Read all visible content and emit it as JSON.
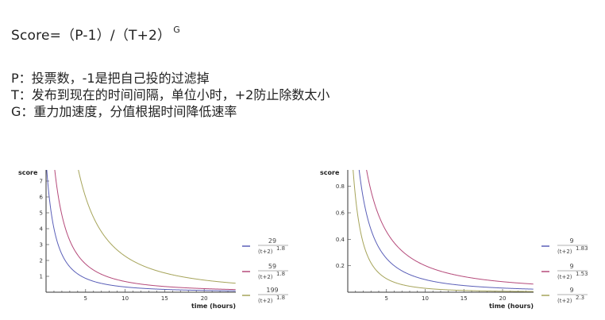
{
  "formula": {
    "main": "Score=（P-1）/（T+2）",
    "exponent": "G"
  },
  "definitions": [
    "P：投票数，-1是把自己投的过滤掉",
    "T：发布到现在的时间间隔，单位小时，+2防止除数太小",
    "G：重力加速度，分值根据时间降低速率"
  ],
  "chart_data": [
    {
      "type": "line",
      "ylabel": "score",
      "xlabel": "time (hours)",
      "xlim": [
        0,
        24
      ],
      "ylim": [
        0,
        7.5
      ],
      "xticks": [
        "5",
        "10",
        "15",
        "20"
      ],
      "yticks": [
        "1",
        "2",
        "3",
        "4",
        "5",
        "6",
        "7"
      ],
      "grid": false,
      "legend_position": "right",
      "series": [
        {
          "num": "29",
          "den": "(t+2)",
          "exp": "1.8",
          "color": "#5a5fb8",
          "p": 29,
          "g": 1.8
        },
        {
          "num": "59",
          "den": "(t+2)",
          "exp": "1.8",
          "color": "#b54a7a",
          "p": 59,
          "g": 1.8
        },
        {
          "num": "199",
          "den": "(t+2)",
          "exp": "1.8",
          "color": "#a6a45a",
          "p": 199,
          "g": 1.8
        }
      ]
    },
    {
      "type": "line",
      "ylabel": "score",
      "xlabel": "time (hours)",
      "xlim": [
        0,
        24
      ],
      "ylim": [
        0,
        0.9
      ],
      "xticks": [
        "5",
        "10",
        "15",
        "20"
      ],
      "yticks": [
        "0.2",
        "0.4",
        "0.6",
        "0.8"
      ],
      "grid": false,
      "legend_position": "right",
      "series": [
        {
          "num": "9",
          "den": "(t+2)",
          "exp": "1.83",
          "color": "#5a5fb8",
          "p": 9,
          "g": 1.83
        },
        {
          "num": "9",
          "den": "(t+2)",
          "exp": "1.53",
          "color": "#b54a7a",
          "p": 9,
          "g": 1.53
        },
        {
          "num": "9",
          "den": "(t+2)",
          "exp": "2.3",
          "color": "#a6a45a",
          "p": 9,
          "g": 2.3
        }
      ]
    }
  ]
}
